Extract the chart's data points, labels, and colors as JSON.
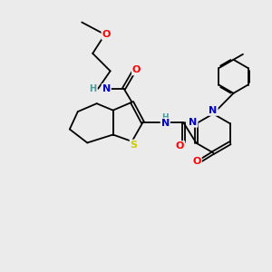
{
  "bg_color": "#ebebeb",
  "atom_colors": {
    "C": "#000000",
    "N": "#0000cc",
    "O": "#ff0000",
    "S": "#cccc00",
    "H": "#4a9a9a"
  },
  "bond_color": "#000000",
  "bond_width": 1.3,
  "fig_size": [
    3.0,
    3.0
  ],
  "dpi": 100
}
